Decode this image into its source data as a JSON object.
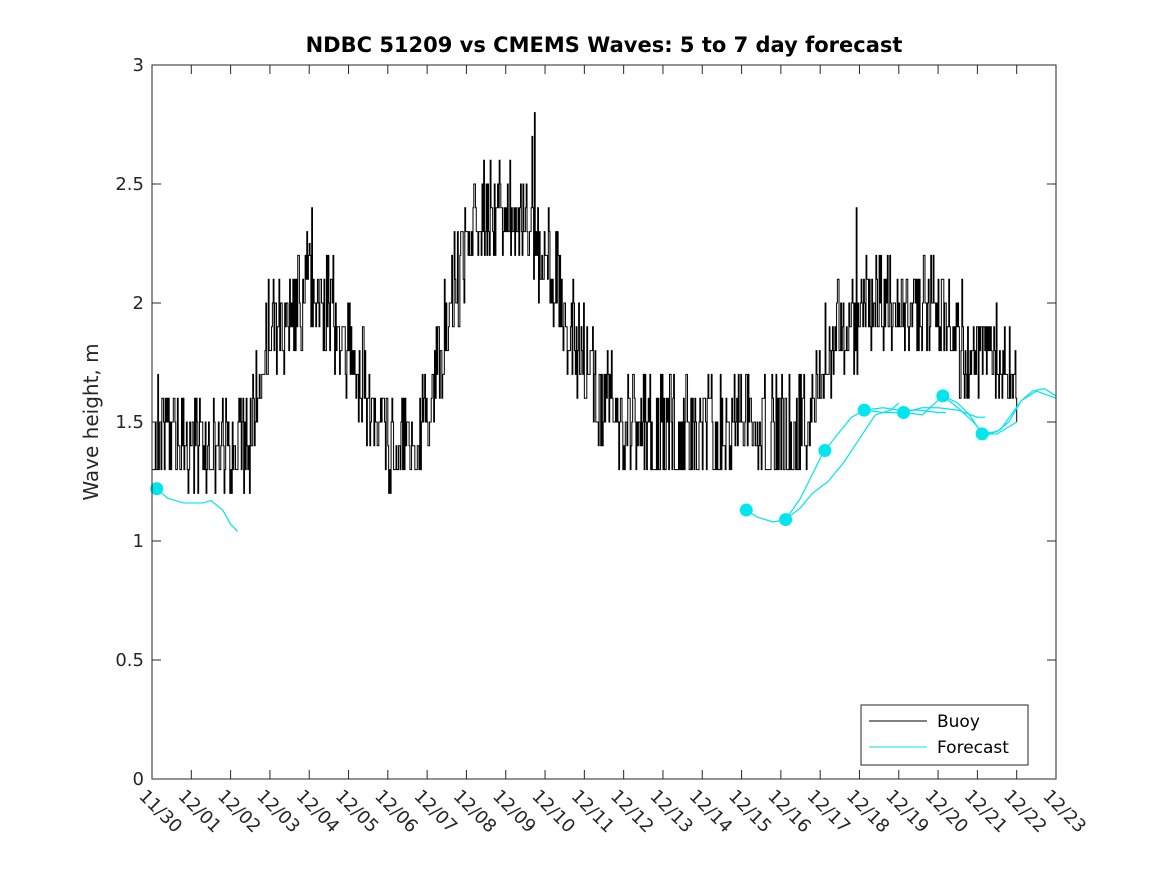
{
  "chart_data": {
    "type": "line",
    "title": "NDBC 51209 vs CMEMS Waves: 5 to 7 day forecast",
    "xlabel": "",
    "ylabel": "Wave height, m",
    "ylim": [
      0,
      3
    ],
    "yticks": [
      "0",
      "0.5",
      "1",
      "1.5",
      "2",
      "2.5",
      "3"
    ],
    "x_unit": "days since 11/30",
    "xlim": [
      0,
      23
    ],
    "xticks": [
      "11/30",
      "12/01",
      "12/02",
      "12/03",
      "12/04",
      "12/05",
      "12/06",
      "12/07",
      "12/08",
      "12/09",
      "12/10",
      "12/11",
      "12/12",
      "12/13",
      "12/14",
      "12/15",
      "12/16",
      "12/17",
      "12/18",
      "12/19",
      "12/20",
      "12/21",
      "12/22",
      "12/23"
    ],
    "grid": false,
    "legend": {
      "position": "bottom-right",
      "entries": [
        "Buoy",
        "Forecast"
      ]
    },
    "colors": {
      "buoy": "#000000",
      "forecast": "#00e5ee",
      "axis": "#262626"
    },
    "series": [
      {
        "name": "Buoy",
        "anchors": [
          [
            0.0,
            1.45
          ],
          [
            0.5,
            1.45
          ],
          [
            1.0,
            1.35
          ],
          [
            1.5,
            1.35
          ],
          [
            2.0,
            1.4
          ],
          [
            2.5,
            1.45
          ],
          [
            3.0,
            1.9
          ],
          [
            3.5,
            1.95
          ],
          [
            4.0,
            2.1
          ],
          [
            4.5,
            2.0
          ],
          [
            5.0,
            1.8
          ],
          [
            5.5,
            1.6
          ],
          [
            6.0,
            1.45
          ],
          [
            6.5,
            1.35
          ],
          [
            7.0,
            1.5
          ],
          [
            7.5,
            1.95
          ],
          [
            8.0,
            2.25
          ],
          [
            8.5,
            2.4
          ],
          [
            9.0,
            2.35
          ],
          [
            9.5,
            2.35
          ],
          [
            10.0,
            2.2
          ],
          [
            10.5,
            1.95
          ],
          [
            11.0,
            1.75
          ],
          [
            11.5,
            1.6
          ],
          [
            12.0,
            1.5
          ],
          [
            12.5,
            1.45
          ],
          [
            13.0,
            1.45
          ],
          [
            13.5,
            1.45
          ],
          [
            14.0,
            1.45
          ],
          [
            14.5,
            1.45
          ],
          [
            15.0,
            1.5
          ],
          [
            15.5,
            1.45
          ],
          [
            16.0,
            1.45
          ],
          [
            16.5,
            1.45
          ],
          [
            17.0,
            1.7
          ],
          [
            17.5,
            1.9
          ],
          [
            18.0,
            1.95
          ],
          [
            18.5,
            1.95
          ],
          [
            19.0,
            1.95
          ],
          [
            19.5,
            1.95
          ],
          [
            20.0,
            1.95
          ],
          [
            20.5,
            1.85
          ],
          [
            21.0,
            1.8
          ],
          [
            21.5,
            1.75
          ],
          [
            22.0,
            1.7
          ]
        ],
        "spikes": [
          [
            0.25,
            1.6
          ],
          [
            0.75,
            1.6
          ],
          [
            1.05,
            1.2
          ],
          [
            1.6,
            1.2
          ],
          [
            2.3,
            1.6
          ],
          [
            3.5,
            2.1
          ],
          [
            4.0,
            2.25
          ],
          [
            4.05,
            2.4
          ],
          [
            4.6,
            2.2
          ],
          [
            5.4,
            1.8
          ],
          [
            6.3,
            1.3
          ],
          [
            6.7,
            1.3
          ],
          [
            7.2,
            1.6
          ],
          [
            7.9,
            2.1
          ],
          [
            8.2,
            2.5
          ],
          [
            8.6,
            2.6
          ],
          [
            9.1,
            2.6
          ],
          [
            9.5,
            2.5
          ],
          [
            9.65,
            2.7
          ],
          [
            9.72,
            2.8
          ],
          [
            10.3,
            2.3
          ],
          [
            10.7,
            2.1
          ],
          [
            11.2,
            1.9
          ],
          [
            12.1,
            1.7
          ],
          [
            13.0,
            1.3
          ],
          [
            13.8,
            1.6
          ],
          [
            14.1,
            1.3
          ],
          [
            14.8,
            1.7
          ],
          [
            15.1,
            1.7
          ],
          [
            15.6,
            1.3
          ],
          [
            16.3,
            1.3
          ],
          [
            17.3,
            1.9
          ],
          [
            17.8,
            2.1
          ],
          [
            17.9,
            2.4
          ],
          [
            18.3,
            2.1
          ],
          [
            19.2,
            2.1
          ],
          [
            20.1,
            2.1
          ],
          [
            20.6,
            2.1
          ],
          [
            21.4,
            1.9
          ],
          [
            21.8,
            1.9
          ],
          [
            22.2,
            1.8
          ]
        ],
        "seed": 51209
      },
      {
        "name": "Forecast",
        "segments": [
          {
            "start": [
              0.12,
              1.22
            ],
            "points": [
              [
                0.12,
                1.22
              ],
              [
                0.4,
                1.18
              ],
              [
                0.8,
                1.16
              ],
              [
                1.3,
                1.16
              ],
              [
                1.5,
                1.17
              ],
              [
                1.8,
                1.13
              ],
              [
                2.0,
                1.07
              ],
              [
                2.18,
                1.04
              ]
            ]
          },
          {
            "start": [
              15.12,
              1.13
            ],
            "points": [
              [
                15.12,
                1.13
              ],
              [
                15.4,
                1.1
              ],
              [
                15.8,
                1.08
              ],
              [
                16.12,
                1.09
              ],
              [
                16.5,
                1.18
              ],
              [
                16.8,
                1.28
              ],
              [
                17.1,
                1.38
              ]
            ]
          },
          {
            "start": [
              16.12,
              1.09
            ],
            "points": [
              [
                16.12,
                1.09
              ],
              [
                16.5,
                1.14
              ],
              [
                16.8,
                1.2
              ],
              [
                17.2,
                1.25
              ],
              [
                17.6,
                1.33
              ],
              [
                18.0,
                1.43
              ],
              [
                18.4,
                1.53
              ],
              [
                18.8,
                1.55
              ],
              [
                19.0,
                1.58
              ]
            ]
          },
          {
            "start": [
              17.12,
              1.38
            ],
            "points": [
              [
                17.12,
                1.38
              ],
              [
                17.5,
                1.46
              ],
              [
                17.8,
                1.52
              ],
              [
                18.12,
                1.55
              ],
              [
                18.6,
                1.56
              ],
              [
                19.0,
                1.55
              ],
              [
                19.5,
                1.55
              ],
              [
                20.0,
                1.54
              ],
              [
                20.2,
                1.54
              ]
            ]
          },
          {
            "start": [
              18.12,
              1.55
            ],
            "points": [
              [
                18.12,
                1.55
              ],
              [
                18.6,
                1.54
              ],
              [
                19.12,
                1.54
              ],
              [
                19.6,
                1.56
              ],
              [
                20.0,
                1.56
              ],
              [
                20.5,
                1.55
              ],
              [
                21.0,
                1.52
              ],
              [
                21.2,
                1.52
              ]
            ]
          },
          {
            "start": [
              19.12,
              1.54
            ],
            "points": [
              [
                19.12,
                1.54
              ],
              [
                19.6,
                1.53
              ],
              [
                20.12,
                1.61
              ],
              [
                20.5,
                1.58
              ],
              [
                20.8,
                1.53
              ],
              [
                21.12,
                1.45
              ],
              [
                21.5,
                1.45
              ],
              [
                22.0,
                1.5
              ]
            ]
          },
          {
            "start": [
              20.12,
              1.61
            ],
            "points": [
              [
                20.12,
                1.61
              ],
              [
                20.5,
                1.56
              ],
              [
                20.9,
                1.5
              ],
              [
                21.2,
                1.44
              ],
              [
                21.6,
                1.47
              ],
              [
                22.12,
                1.59
              ],
              [
                22.5,
                1.63
              ],
              [
                23.0,
                1.6
              ]
            ]
          },
          {
            "start": [
              21.12,
              1.45
            ],
            "points": [
              [
                21.12,
                1.45
              ],
              [
                21.5,
                1.46
              ],
              [
                21.8,
                1.5
              ],
              [
                22.12,
                1.59
              ],
              [
                22.4,
                1.63
              ],
              [
                22.7,
                1.64
              ],
              [
                23.0,
                1.61
              ]
            ]
          }
        ]
      }
    ]
  }
}
